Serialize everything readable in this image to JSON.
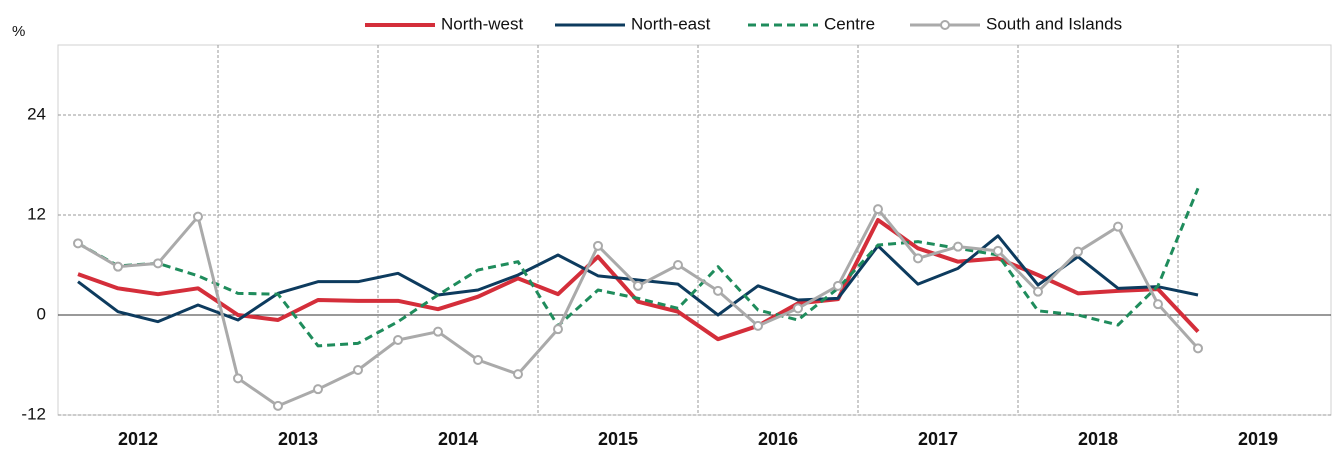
{
  "chart_data": {
    "type": "line",
    "y_unit": "%",
    "groups": [
      "2012",
      "2013",
      "2014",
      "2015",
      "2016",
      "2017",
      "2018",
      "2019"
    ],
    "categories": [
      null,
      null,
      null,
      null,
      null,
      null,
      null,
      null,
      null,
      null,
      null,
      null,
      null,
      null,
      null,
      null,
      null,
      null,
      null,
      null,
      null,
      null,
      null,
      null,
      null,
      null,
      null,
      null,
      null
    ],
    "series": [
      {
        "name": "North-west",
        "color": "#d42e3a",
        "dash": false,
        "markers": false,
        "values": [
          4.9,
          3.2,
          2.5,
          3.2,
          0,
          -0.6,
          1.8,
          1.7,
          1.7,
          0.7,
          2.2,
          4.4,
          2.5,
          7.0,
          1.6,
          0.4,
          -2.9,
          -1.3,
          1.4,
          1.9,
          11.4,
          8.0,
          6.4,
          6.8,
          4.8,
          2.6,
          2.9,
          3.1,
          -2.0
        ]
      },
      {
        "name": "North-east",
        "color": "#0d3b5e",
        "dash": false,
        "markers": false,
        "values": [
          4.0,
          0.4,
          -0.8,
          1.2,
          -0.6,
          2.6,
          4.0,
          4.0,
          5.0,
          2.4,
          3.0,
          4.8,
          7.2,
          4.7,
          4.2,
          3.7,
          0,
          3.5,
          1.8,
          2.0,
          8.3,
          3.7,
          5.6,
          9.5,
          3.6,
          7.0,
          3.2,
          3.4,
          2.4
        ]
      },
      {
        "name": "Centre",
        "color": "#1f8c5c",
        "dash": true,
        "markers": false,
        "values": [
          8.6,
          5.9,
          6.2,
          4.7,
          2.6,
          2.5,
          -3.7,
          -3.4,
          -0.8,
          2.4,
          5.4,
          6.4,
          -1.3,
          3.0,
          2.0,
          0.8,
          5.8,
          0.6,
          -0.6,
          3.2,
          8.4,
          8.8,
          8.0,
          7.2,
          0.5,
          0,
          -1.2,
          3.5,
          15.2
        ]
      },
      {
        "name": "South and Islands",
        "color": "#aaaaaa",
        "dash": false,
        "markers": true,
        "values": [
          8.6,
          5.8,
          6.2,
          11.8,
          -7.6,
          -10.9,
          -8.9,
          -6.6,
          -3.0,
          -2.0,
          -5.4,
          -7.1,
          -1.7,
          8.3,
          3.5,
          6.0,
          2.9,
          -1.3,
          0.8,
          3.5,
          12.7,
          6.8,
          8.2,
          7.7,
          2.8,
          7.6,
          10.6,
          1.3,
          -4.0
        ]
      }
    ],
    "ylim": [
      -12,
      32.4
    ],
    "yticks": [
      -12,
      0,
      12,
      24
    ],
    "grid": true
  }
}
